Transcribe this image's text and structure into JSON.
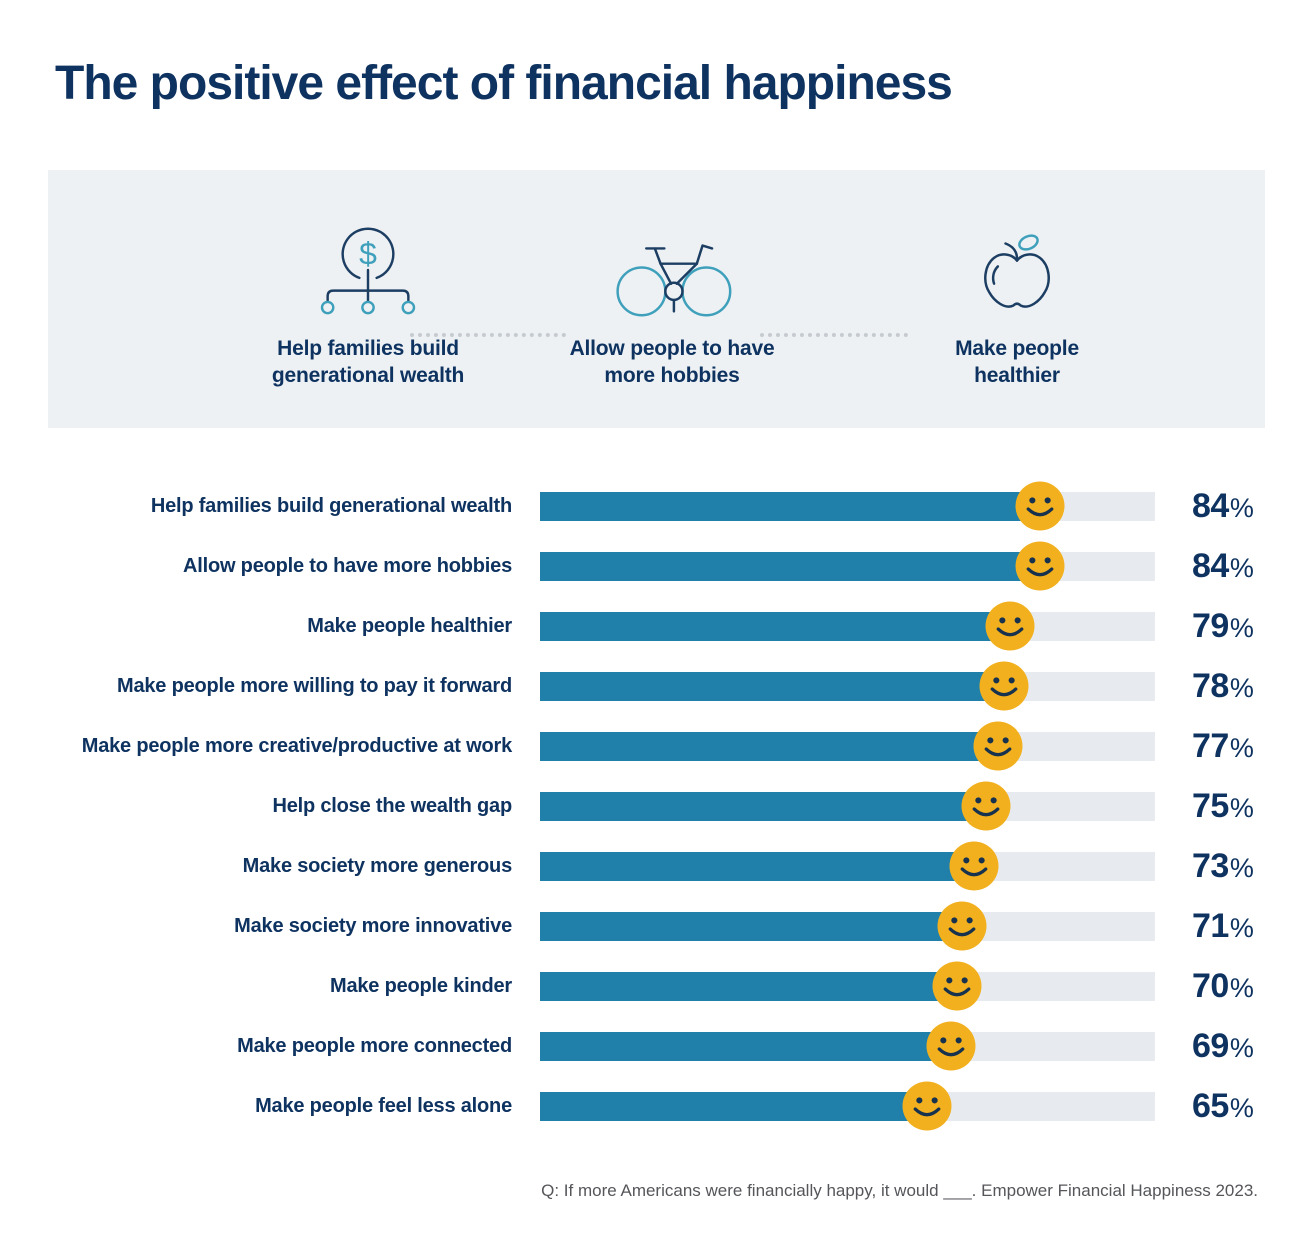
{
  "title": "The positive effect of financial happiness",
  "banner": {
    "items": [
      {
        "icon": "generational-wealth-icon",
        "label_line1": "Help families build",
        "label_line2": "generational wealth"
      },
      {
        "icon": "bicycle-icon",
        "label_line1": "Allow people to have",
        "label_line2": "more hobbies"
      },
      {
        "icon": "apple-icon",
        "label_line1": "Make people",
        "label_line2": "healthier"
      }
    ]
  },
  "chart_data": {
    "type": "bar",
    "orientation": "horizontal",
    "title": "The positive effect of financial happiness",
    "unit": "%",
    "xlim": [
      0,
      100
    ],
    "grid": false,
    "legend": null,
    "marker": "smiley-face",
    "categories": [
      "Help families build generational wealth",
      "Allow people to have more hobbies",
      "Make people healthier",
      "Make people more willing to pay it forward",
      "Make people more creative/productive at work",
      "Help close the wealth gap",
      "Make society more generous",
      "Make society more innovative",
      "Make people kinder",
      "Make people more connected",
      "Make people feel less alone"
    ],
    "values": [
      84,
      84,
      79,
      78,
      77,
      75,
      73,
      71,
      70,
      69,
      65
    ]
  },
  "footnote": "Q: If more Americans were financially happy, it would ___. Empower Financial Happiness 2023.",
  "colors": {
    "title_navy": "#0f3360",
    "bar_fill": "#2080a9",
    "bar_track": "#e7ebef",
    "banner_bg": "#edf1f4",
    "smiley_yellow": "#f2b01e",
    "smiley_features": "#16324f",
    "icon_navy": "#1d3e63",
    "icon_teal": "#3fa0bc",
    "footnote_gray": "#55565a",
    "dot_gray": "#c6cbd0"
  }
}
